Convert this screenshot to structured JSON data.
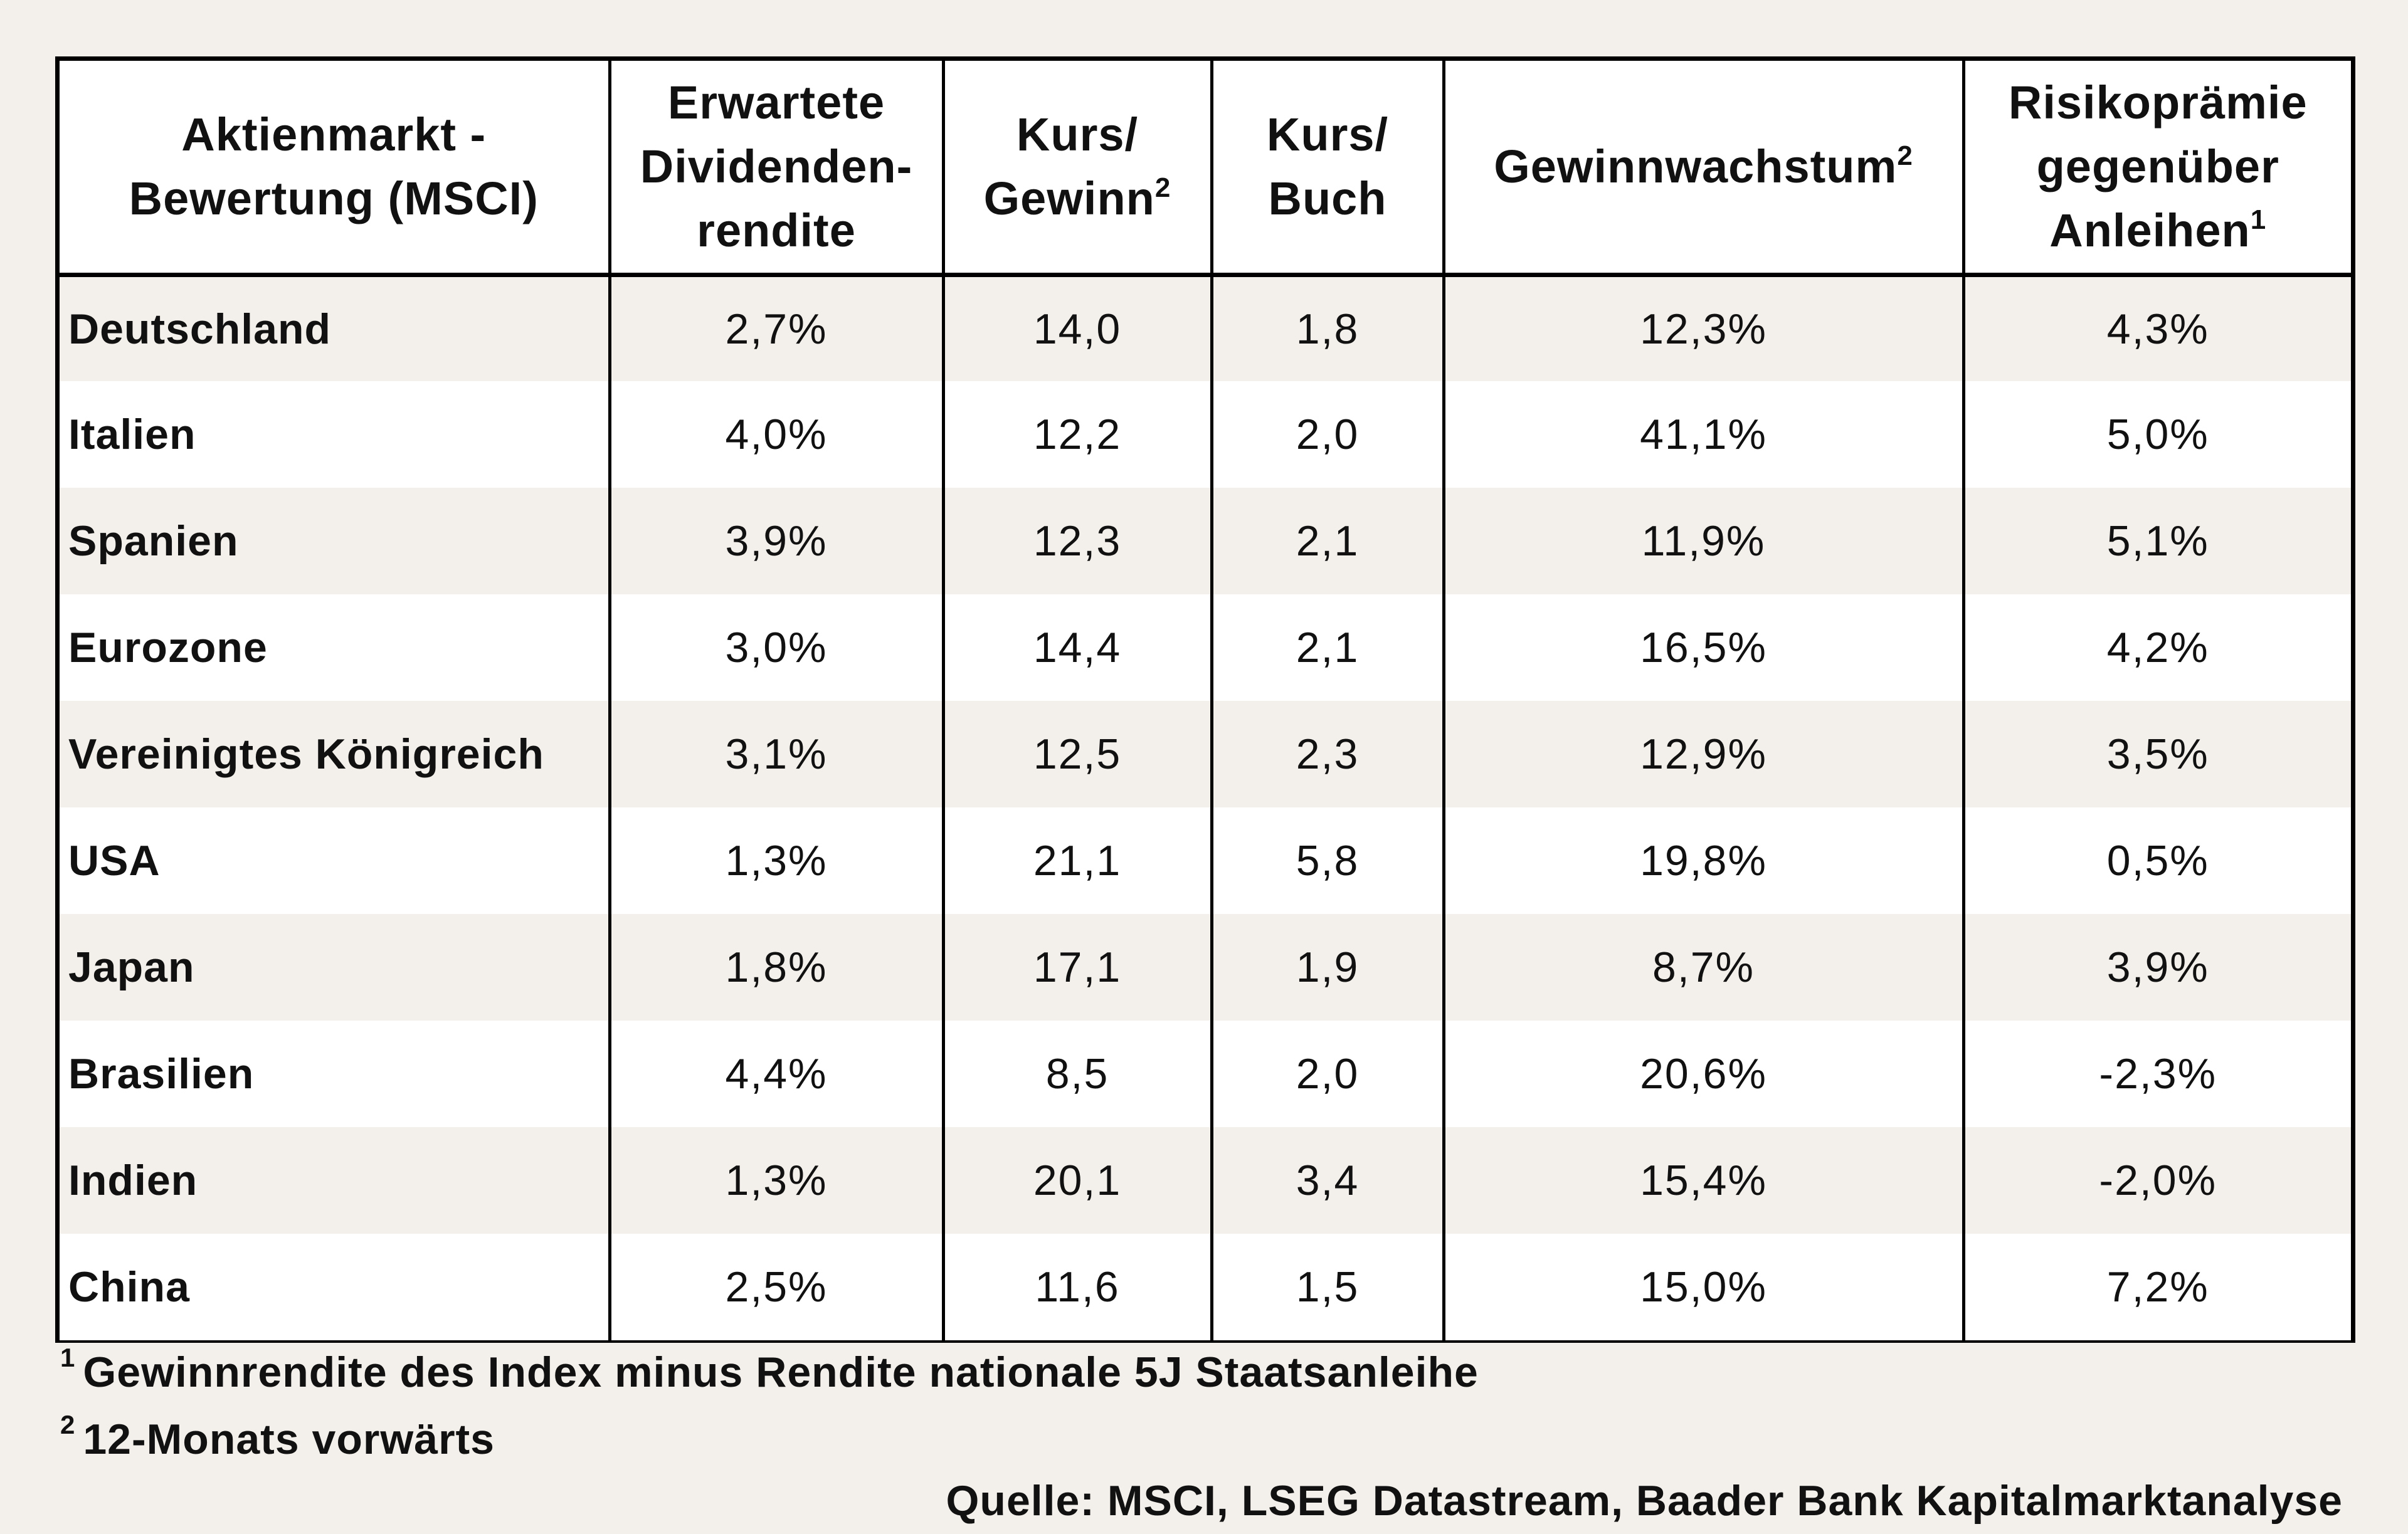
{
  "table": {
    "headers": [
      {
        "lines": [
          "Aktienmarkt -",
          "Bewertung (MSCI)"
        ],
        "sup": ""
      },
      {
        "lines": [
          "Erwartete",
          "Dividenden-",
          "rendite"
        ],
        "sup": ""
      },
      {
        "lines": [
          "Kurs/",
          "Gewinn"
        ],
        "sup": "2"
      },
      {
        "lines": [
          "Kurs/",
          "Buch"
        ],
        "sup": ""
      },
      {
        "lines": [
          "Gewinnwachstum"
        ],
        "sup": "2"
      },
      {
        "lines": [
          "Risikoprämie",
          "gegenüber",
          "Anleihen"
        ],
        "sup": "1"
      }
    ],
    "rows": [
      {
        "market": "Deutschland",
        "dividend_yield": "2,7%",
        "pe": "14,0",
        "pb": "1,8",
        "growth": "12,3%",
        "risk_premium": "4,3%"
      },
      {
        "market": "Italien",
        "dividend_yield": "4,0%",
        "pe": "12,2",
        "pb": "2,0",
        "growth": "41,1%",
        "risk_premium": "5,0%"
      },
      {
        "market": "Spanien",
        "dividend_yield": "3,9%",
        "pe": "12,3",
        "pb": "2,1",
        "growth": "11,9%",
        "risk_premium": "5,1%"
      },
      {
        "market": "Eurozone",
        "dividend_yield": "3,0%",
        "pe": "14,4",
        "pb": "2,1",
        "growth": "16,5%",
        "risk_premium": "4,2%"
      },
      {
        "market": "Vereinigtes Königreich",
        "dividend_yield": "3,1%",
        "pe": "12,5",
        "pb": "2,3",
        "growth": "12,9%",
        "risk_premium": "3,5%"
      },
      {
        "market": "USA",
        "dividend_yield": "1,3%",
        "pe": "21,1",
        "pb": "5,8",
        "growth": "19,8%",
        "risk_premium": "0,5%"
      },
      {
        "market": "Japan",
        "dividend_yield": "1,8%",
        "pe": "17,1",
        "pb": "1,9",
        "growth": "8,7%",
        "risk_premium": "3,9%"
      },
      {
        "market": "Brasilien",
        "dividend_yield": "4,4%",
        "pe": "8,5",
        "pb": "2,0",
        "growth": "20,6%",
        "risk_premium": "-2,3%"
      },
      {
        "market": "Indien",
        "dividend_yield": "1,3%",
        "pe": "20,1",
        "pb": "3,4",
        "growth": "15,4%",
        "risk_premium": "-2,0%"
      },
      {
        "market": "China",
        "dividend_yield": "2,5%",
        "pe": "11,6",
        "pb": "1,5",
        "growth": "15,0%",
        "risk_premium": "7,2%"
      }
    ]
  },
  "footnotes": [
    {
      "marker": "1",
      "text": "Gewinnrendite des Index minus Rendite nationale 5J Staatsanleihe"
    },
    {
      "marker": "2",
      "text": "12-Monats vorwärts"
    }
  ],
  "source": "Quelle: MSCI, LSEG Datastream, Baader Bank Kapitalmarktanalyse"
}
